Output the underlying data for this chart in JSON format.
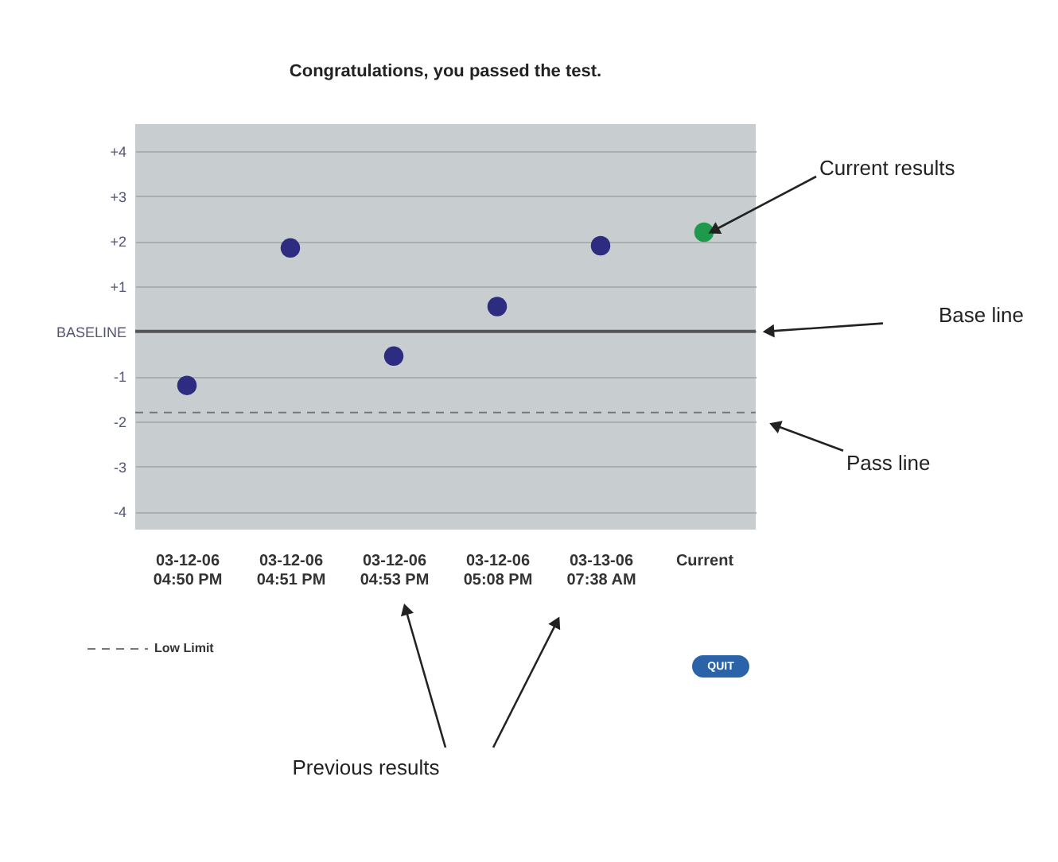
{
  "chart_data": {
    "type": "scatter",
    "title": "Congratulations, you passed the test.",
    "categories": [
      "03-12-06\n04:50 PM",
      "03-12-06\n04:51 PM",
      "03-12-06\n04:53 PM",
      "03-12-06\n05:08 PM",
      "03-13-06\n07:38 AM",
      "Current"
    ],
    "values": [
      -1.2,
      1.85,
      -0.55,
      0.55,
      1.9,
      2.2
    ],
    "colors": [
      "#2e2c80",
      "#2e2c80",
      "#2e2c80",
      "#2e2c80",
      "#2e2c80",
      "#1f9a4c"
    ],
    "marker": "circle",
    "ylim": [
      -4.4,
      4.6
    ],
    "yticks": [
      {
        "value": 4,
        "label": "+4"
      },
      {
        "value": 3,
        "label": "+3"
      },
      {
        "value": 2,
        "label": "+2"
      },
      {
        "value": 1,
        "label": "+1"
      },
      {
        "value": 0,
        "label": "BASELINE"
      },
      -1,
      -2,
      -3,
      -4
    ],
    "grid": "y",
    "ref_lines": [
      {
        "axis": "y",
        "value": 0,
        "color": "#555555",
        "line_style": "solid"
      },
      {
        "axis": "y",
        "value": -1.8,
        "label": "Low Limit",
        "color": "#777777",
        "line_style": "dashed"
      }
    ],
    "legend": "bottom left",
    "annotations": [
      {
        "text": "Current results",
        "x": "Current",
        "y": 2.2
      },
      "Base line",
      "Pass line",
      "Previous results",
      "QUIT"
    ]
  }
}
